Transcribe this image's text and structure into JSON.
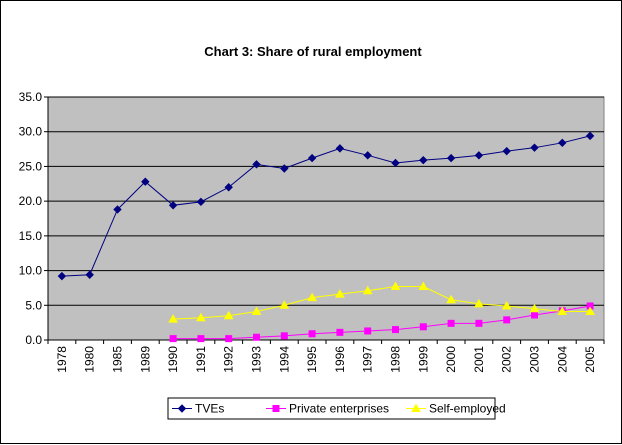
{
  "chart_data": {
    "type": "line",
    "title": "Chart 3: Share of rural employment",
    "xlabel": "",
    "ylabel": "",
    "categories": [
      "1978",
      "1980",
      "1985",
      "1989",
      "1990",
      "1991",
      "1992",
      "1993",
      "1994",
      "1995",
      "1996",
      "1997",
      "1998",
      "1999",
      "2000",
      "2001",
      "2002",
      "2003",
      "2004",
      "2005"
    ],
    "ylim": [
      0,
      35
    ],
    "yticks": [
      "0.0",
      "5.0",
      "10.0",
      "15.0",
      "20.0",
      "25.0",
      "30.0",
      "35.0"
    ],
    "ytick_values": [
      0,
      5,
      10,
      15,
      20,
      25,
      30,
      35
    ],
    "grid": "horizontal",
    "plot_background": "#C0C0C0",
    "legend_position": "bottom",
    "series": [
      {
        "name": "TVEs",
        "color": "#000080",
        "marker": "diamond",
        "values": [
          9.2,
          9.4,
          18.8,
          22.8,
          19.4,
          19.9,
          22.0,
          25.3,
          24.7,
          26.2,
          27.6,
          26.6,
          25.5,
          25.9,
          26.2,
          26.6,
          27.2,
          27.7,
          28.4,
          29.4
        ]
      },
      {
        "name": "Private enterprises",
        "color": "#FF00FF",
        "marker": "square",
        "values": [
          null,
          null,
          null,
          null,
          0.2,
          0.2,
          0.2,
          0.4,
          0.6,
          0.9,
          1.1,
          1.3,
          1.5,
          1.9,
          2.4,
          2.4,
          2.9,
          3.6,
          4.2,
          4.9
        ]
      },
      {
        "name": "Self-employed",
        "color": "#FFFF00",
        "marker": "triangle",
        "values": [
          null,
          null,
          null,
          null,
          3.0,
          3.2,
          3.5,
          4.1,
          5.0,
          6.1,
          6.6,
          7.1,
          7.7,
          7.7,
          5.8,
          5.2,
          4.9,
          4.5,
          4.1,
          4.1
        ]
      }
    ]
  }
}
